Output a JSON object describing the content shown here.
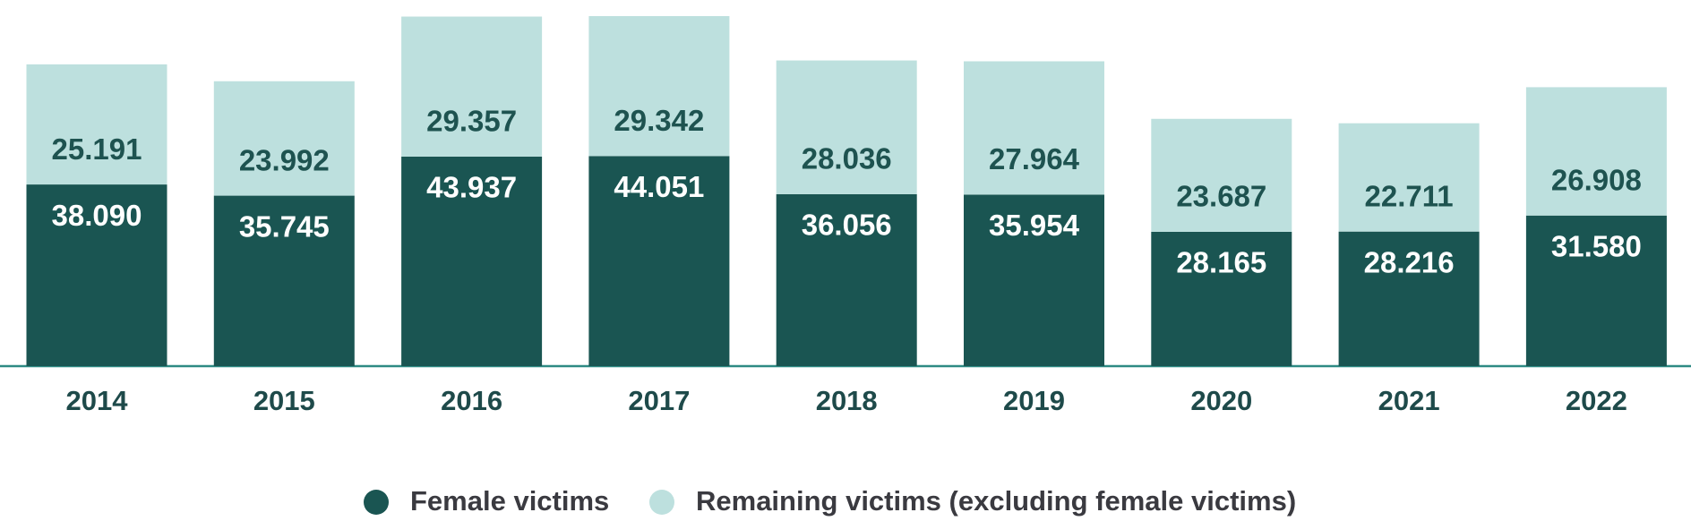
{
  "chart_data": {
    "type": "stacked-bar",
    "categories": [
      "2014",
      "2015",
      "2016",
      "2017",
      "2018",
      "2019",
      "2020",
      "2021",
      "2022"
    ],
    "series": [
      {
        "name": "Female victims",
        "color": "#1a5552",
        "values": [
          38090,
          35745,
          43937,
          44051,
          36056,
          35954,
          28165,
          28216,
          31580
        ],
        "value_labels": [
          "38.090",
          "35.745",
          "43.937",
          "44.051",
          "36.056",
          "35.954",
          "28.165",
          "28.216",
          "31.580"
        ]
      },
      {
        "name": "Remaining victims (excluding female victims)",
        "color": "#bde0de",
        "values": [
          25191,
          23992,
          29357,
          29342,
          28036,
          27964,
          23687,
          22711,
          26908
        ],
        "value_labels": [
          "25.191",
          "23.992",
          "29.357",
          "29.342",
          "28.036",
          "27.964",
          "23.687",
          "22.711",
          "26.908"
        ]
      }
    ]
  }
}
